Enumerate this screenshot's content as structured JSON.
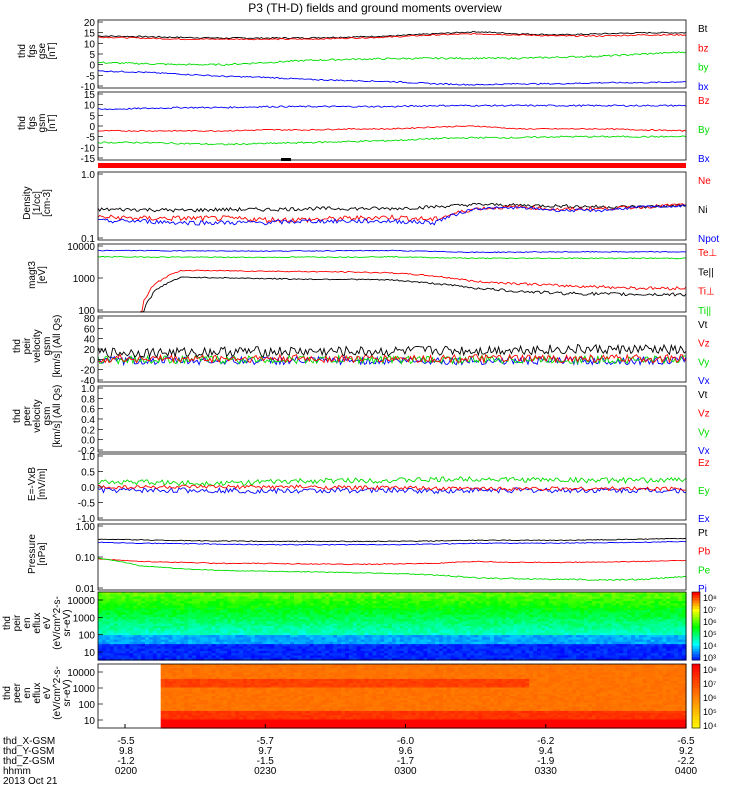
{
  "title": "P3 (TH-D) fields and ground moments overview",
  "colors": {
    "black": "#000000",
    "red": "#ff0000",
    "green": "#00dd00",
    "blue": "#0000ff"
  },
  "chart_data": [
    {
      "type": "line",
      "ylabel": [
        "thd",
        "fgs",
        "gse",
        "[nT]"
      ],
      "yticks": [
        "20",
        "15",
        "10",
        "5",
        "0",
        "-5",
        "-10"
      ],
      "ylim": [
        -12,
        20
      ],
      "legend": [
        {
          "label": "Bt",
          "color": "#000000"
        },
        {
          "label": "bz",
          "color": "#ff0000"
        },
        {
          "label": "by",
          "color": "#00dd00"
        },
        {
          "label": "bx",
          "color": "#0000ff"
        }
      ],
      "series": [
        {
          "color": "#000000",
          "base": [
            12.5,
            12.2,
            11.8,
            11.5,
            11.5,
            11.6,
            12,
            12.5,
            13.5,
            14.5,
            13.5,
            13,
            13.5,
            14,
            14
          ],
          "noise": 0.3
        },
        {
          "color": "#ff0000",
          "base": [
            12,
            11.5,
            11,
            11,
            11,
            11,
            11.5,
            12,
            13,
            13.5,
            13,
            12.5,
            12.5,
            13,
            13
          ],
          "noise": 0.3
        },
        {
          "color": "#00dd00",
          "base": [
            0,
            -0.5,
            -1,
            -1,
            0,
            1,
            1.5,
            1.8,
            2,
            2,
            2,
            2.5,
            3,
            4,
            5
          ],
          "noise": 0.4
        },
        {
          "color": "#0000ff",
          "base": [
            -4,
            -4.5,
            -5.5,
            -6.5,
            -7,
            -8,
            -8.5,
            -9,
            -10,
            -10.5,
            -10,
            -10,
            -9.5,
            -9.5,
            -9
          ],
          "noise": 0.3
        }
      ]
    },
    {
      "type": "line",
      "ylabel": [
        "thd",
        "fgs",
        "gsm",
        "[nT]"
      ],
      "yticks": [
        "15",
        "10",
        "5",
        "0",
        "-5",
        "-10",
        "-15"
      ],
      "ylim": [
        -18,
        17
      ],
      "legend": [
        {
          "label": "Bz",
          "color": "#ff0000"
        },
        {
          "label": "By",
          "color": "#00dd00"
        },
        {
          "label": "Bx",
          "color": "#0000ff"
        }
      ],
      "series": [
        {
          "color": "#0000ff",
          "base": [
            8,
            8.5,
            9,
            9,
            9.5,
            9.5,
            9.5,
            9.5,
            10,
            10,
            10,
            10,
            10,
            10,
            10
          ],
          "noise": 0.4
        },
        {
          "color": "#ff0000",
          "base": [
            -3,
            -3,
            -3,
            -3,
            -2.5,
            -2.5,
            -2,
            -2,
            -1,
            -0.5,
            -2,
            -2,
            -2,
            -2.5,
            -3
          ],
          "noise": 0.3
        },
        {
          "color": "#00dd00",
          "base": [
            -9,
            -9,
            -9.5,
            -10,
            -9.5,
            -9,
            -8.5,
            -8,
            -7,
            -6.5,
            -6.5,
            -6,
            -6,
            -6,
            -6
          ],
          "noise": 0.4
        }
      ]
    },
    {
      "type": "line",
      "ylabel": [
        "Density",
        "[1/cc]",
        "[cm-3]"
      ],
      "yticks": [
        "1.0",
        "0.1"
      ],
      "ylim": [
        0.08,
        1.2
      ],
      "log": true,
      "legend": [
        {
          "label": "Ne",
          "color": "#ff0000"
        },
        {
          "label": "Ni",
          "color": "#000000"
        },
        {
          "label": "Npot",
          "color": "#0000ff"
        }
      ],
      "series": [
        {
          "color": "#000000",
          "base": [
            0.27,
            0.27,
            0.26,
            0.27,
            0.27,
            0.28,
            0.28,
            0.28,
            0.3,
            0.33,
            0.32,
            0.31,
            0.3,
            0.3,
            0.32
          ],
          "noise": 0.02
        },
        {
          "color": "#ff0000",
          "base": [
            0.2,
            0.19,
            0.19,
            0.19,
            0.18,
            0.18,
            0.19,
            0.2,
            0.18,
            0.28,
            0.3,
            0.27,
            0.28,
            0.3,
            0.33
          ],
          "noise": 0.02
        },
        {
          "color": "#0000ff",
          "base": [
            0.17,
            0.17,
            0.16,
            0.16,
            0.16,
            0.17,
            0.17,
            0.17,
            0.16,
            0.28,
            0.29,
            0.26,
            0.26,
            0.3,
            0.31
          ],
          "noise": 0.015
        }
      ]
    },
    {
      "type": "line",
      "ylabel": [
        "magt3",
        "[eV]"
      ],
      "yticks": [
        "10000",
        "1000",
        "100"
      ],
      "ylim": [
        90,
        12000
      ],
      "log": true,
      "legend": [
        {
          "label": "Te⊥",
          "color": "#ff0000"
        },
        {
          "label": "Te||",
          "color": "#000000"
        },
        {
          "label": "Ti⊥",
          "color": "#ff0000"
        },
        {
          "label": "Ti||",
          "color": "#00dd00"
        }
      ],
      "series": [
        {
          "color": "#0000ff",
          "base": [
            7500,
            7500,
            7300,
            7300,
            7200,
            7300,
            7400,
            7500,
            7000,
            6600,
            6700,
            6800,
            6800,
            6800,
            6800
          ],
          "noise": 200
        },
        {
          "color": "#00dd00",
          "base": [
            4800,
            4700,
            4700,
            4600,
            4600,
            4700,
            4700,
            4800,
            4500,
            4300,
            4300,
            4300,
            4300,
            4300,
            4300
          ],
          "noise": 150
        },
        {
          "color": "#ff0000",
          "base": [
            0,
            0,
            1800,
            1750,
            1700,
            1650,
            1600,
            1500,
            1200,
            800,
            700,
            600,
            550,
            500,
            500
          ],
          "noise": 60
        },
        {
          "color": "#000000",
          "base": [
            0,
            0,
            1100,
            1050,
            1000,
            950,
            950,
            900,
            700,
            500,
            400,
            350,
            330,
            320,
            320
          ],
          "noise": 40
        }
      ]
    },
    {
      "type": "line",
      "ylabel": [
        "thd",
        "peir",
        "velocity",
        "gsm",
        "[km/s] (All Qs)"
      ],
      "yticks": [
        "80",
        "60",
        "40",
        "20",
        "0",
        "-20",
        "-40"
      ],
      "ylim": [
        -42,
        88
      ],
      "legend": [
        {
          "label": "Vt",
          "color": "#000000"
        },
        {
          "label": "Vz",
          "color": "#ff0000"
        },
        {
          "label": "Vy",
          "color": "#00dd00"
        },
        {
          "label": "Vx",
          "color": "#0000ff"
        }
      ],
      "series": [
        {
          "color": "#0000ff",
          "base": [
            0,
            0,
            0,
            0,
            0,
            0,
            0,
            0,
            0,
            0,
            0,
            0,
            0,
            0,
            0
          ],
          "noise": 8
        },
        {
          "color": "#00dd00",
          "base": [
            2,
            2,
            2,
            2,
            2,
            2,
            2,
            2,
            2,
            2,
            2,
            2,
            2,
            2,
            2
          ],
          "noise": 8
        },
        {
          "color": "#ff0000",
          "base": [
            4,
            4,
            4,
            4,
            4,
            4,
            4,
            4,
            4,
            4,
            4,
            4,
            4,
            4,
            4
          ],
          "noise": 8
        },
        {
          "color": "#000000",
          "base": [
            16,
            16,
            16,
            18,
            18,
            18,
            18,
            18,
            20,
            20,
            22,
            22,
            22,
            22,
            20
          ],
          "noise": 10
        }
      ]
    },
    {
      "type": "line",
      "ylabel": [
        "thd",
        "peer",
        "velocity",
        "gsm",
        "[km/s] (All Qs)"
      ],
      "yticks": [
        "1.0",
        "0.8",
        "0.6",
        "0.4",
        "0.2",
        "0.0",
        "-0.2"
      ],
      "ylim": [
        -0.2,
        1.0
      ],
      "legend": [
        {
          "label": "Vt",
          "color": "#000000"
        },
        {
          "label": "Vz",
          "color": "#ff0000"
        },
        {
          "label": "Vy",
          "color": "#00dd00"
        },
        {
          "label": "Vx",
          "color": "#0000ff"
        }
      ],
      "series": []
    },
    {
      "type": "line",
      "ylabel": [
        "E=-VxB",
        "[mV/m]"
      ],
      "yticks": [
        "1.0",
        "0.5",
        "0.0",
        "-0.5",
        "-1.0"
      ],
      "ylim": [
        -1.0,
        1.0
      ],
      "legend": [
        {
          "label": "Ez",
          "color": "#ff0000"
        },
        {
          "label": "Ey",
          "color": "#00dd00"
        },
        {
          "label": "Ex",
          "color": "#0000ff"
        }
      ],
      "series": [
        {
          "color": "#0000ff",
          "base": [
            -0.1,
            -0.1,
            -0.1,
            -0.1,
            -0.12,
            -0.12,
            -0.1,
            -0.1,
            -0.12,
            -0.1,
            -0.1,
            -0.1,
            -0.1,
            -0.1,
            -0.1
          ],
          "noise": 0.08
        },
        {
          "color": "#00dd00",
          "base": [
            0.15,
            0.15,
            0.12,
            0.12,
            0.15,
            0.18,
            0.2,
            0.2,
            0.22,
            0.25,
            0.22,
            0.22,
            0.2,
            0.2,
            0.22
          ],
          "noise": 0.08
        },
        {
          "color": "#ff0000",
          "base": [
            0,
            0,
            0,
            0,
            0,
            0,
            -0.02,
            -0.02,
            -0.05,
            -0.05,
            -0.05,
            -0.05,
            -0.05,
            -0.05,
            -0.05
          ],
          "noise": 0.06
        }
      ]
    },
    {
      "type": "line",
      "ylabel": [
        "Pressure",
        "[nPa]"
      ],
      "yticks": [
        "1.00",
        "0.10",
        "0.01"
      ],
      "ylim": [
        0.008,
        1.2
      ],
      "log": true,
      "legend": [
        {
          "label": "Pt",
          "color": "#000000"
        },
        {
          "label": "Pb",
          "color": "#ff0000"
        },
        {
          "label": "Pe",
          "color": "#00dd00"
        },
        {
          "label": "Pi",
          "color": "#0000ff"
        }
      ],
      "series": [
        {
          "color": "#000000",
          "base": [
            0.38,
            0.36,
            0.34,
            0.33,
            0.32,
            0.32,
            0.32,
            0.32,
            0.33,
            0.35,
            0.35,
            0.35,
            0.36,
            0.38,
            0.4
          ],
          "noise": 0.01
        },
        {
          "color": "#0000ff",
          "base": [
            0.3,
            0.28,
            0.27,
            0.26,
            0.25,
            0.25,
            0.25,
            0.25,
            0.26,
            0.28,
            0.28,
            0.28,
            0.29,
            0.3,
            0.32
          ],
          "noise": 0.008
        },
        {
          "color": "#ff0000",
          "base": [
            0.085,
            0.07,
            0.065,
            0.06,
            0.06,
            0.058,
            0.056,
            0.058,
            0.06,
            0.07,
            0.065,
            0.065,
            0.067,
            0.07,
            0.075
          ],
          "noise": 0.002
        },
        {
          "color": "#00dd00",
          "base": [
            0.09,
            0.05,
            0.04,
            0.035,
            0.033,
            0.032,
            0.03,
            0.028,
            0.025,
            0.02,
            0.019,
            0.018,
            0.017,
            0.018,
            0.022
          ],
          "noise": 0.001
        }
      ]
    },
    {
      "type": "heatmap",
      "ylabel": [
        "thd",
        "peir",
        "en",
        "eflux",
        "eV",
        "(eV/cm^2-s-",
        "sr-eV)"
      ],
      "yticks": [
        "10000",
        "1000",
        "100",
        "10"
      ],
      "colorbar_labels": [
        "10⁸",
        "10⁷",
        "10⁶",
        "10⁵",
        "10⁴",
        "10³"
      ]
    },
    {
      "type": "heatmap",
      "ylabel": [
        "thd",
        "peer",
        "en",
        "eflux",
        "eV",
        "(eV/cm^2-s-",
        "sr-eV)"
      ],
      "yticks": [
        "10000",
        "1000",
        "100",
        "10"
      ],
      "colorbar_labels": [
        "10⁸",
        "10⁷",
        "10⁶",
        "10⁵",
        "10⁴"
      ]
    }
  ],
  "xaxis": {
    "row_labels": [
      "thd_X-GSM",
      "thd_Y-GSM",
      "thd_Z-GSM",
      "hhmm",
      "2013 Oct 21"
    ],
    "ticks": [
      {
        "x": "-5.5",
        "y": "9.8",
        "z": "-1.2",
        "t": "0200"
      },
      {
        "x": "-5.7",
        "y": "9.7",
        "z": "-1.5",
        "t": "0230"
      },
      {
        "x": "-6.0",
        "y": "9.6",
        "z": "-1.7",
        "t": "0300"
      },
      {
        "x": "-6.2",
        "y": "9.4",
        "z": "-1.9",
        "t": "0330"
      },
      {
        "x": "-6.5",
        "y": "9.2",
        "z": "-2.2",
        "t": "0400"
      }
    ]
  }
}
